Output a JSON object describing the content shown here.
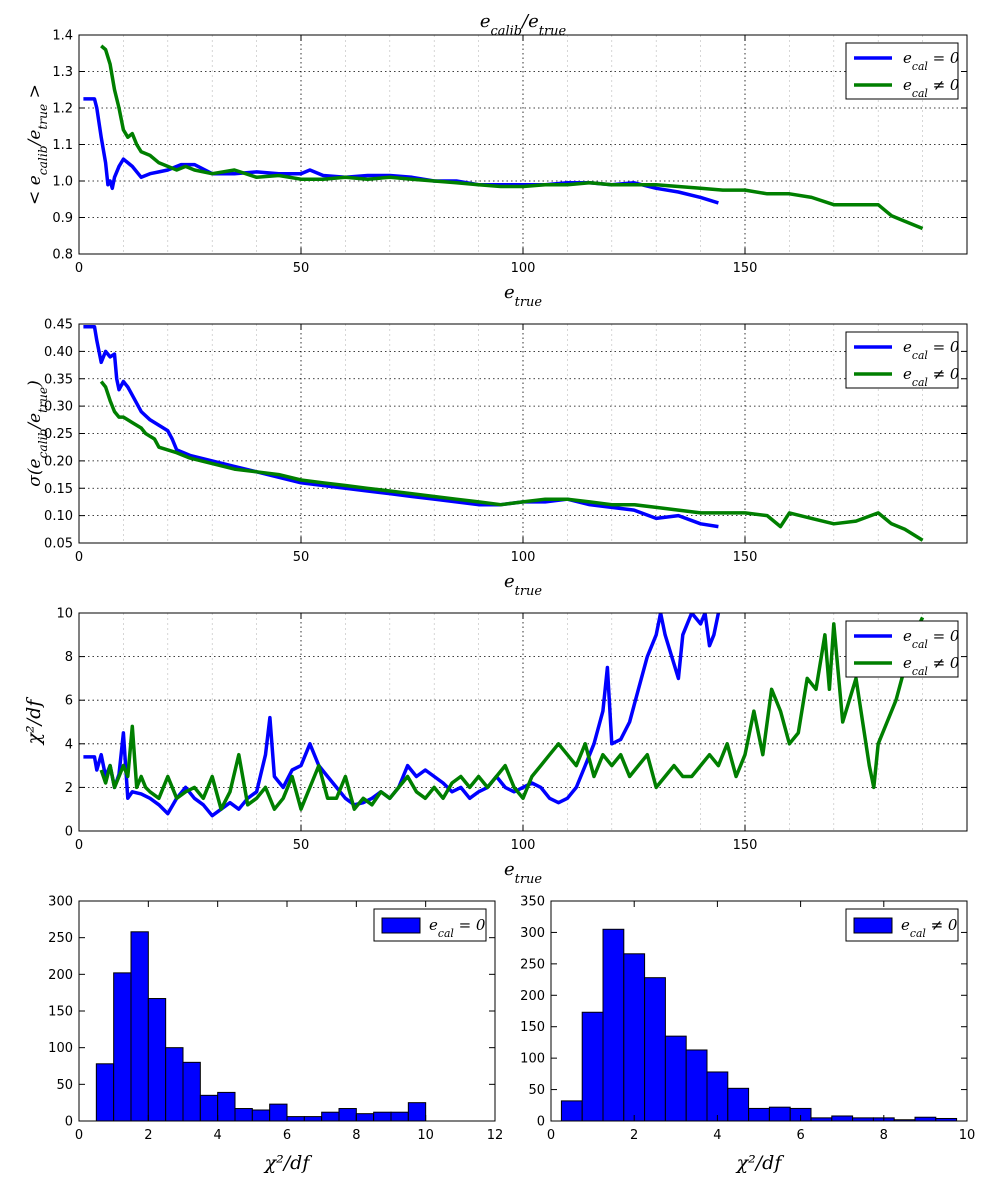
{
  "colors": {
    "blue": "#0000ff",
    "green": "#007f00",
    "grid": "#000000"
  },
  "legend": {
    "blue_label": "e_cal = 0",
    "green_label": "e_cal ≠ 0"
  },
  "chart_data": [
    {
      "type": "line",
      "title": "e_calib/e_true",
      "xlabel": "e_true",
      "ylabel": "< e_calib/e_true >",
      "xlim": [
        0,
        200
      ],
      "ylim": [
        0.8,
        1.4
      ],
      "xticks": [
        0,
        50,
        100,
        150
      ],
      "yticks": [
        0.8,
        0.9,
        1.0,
        1.1,
        1.2,
        1.3,
        1.4
      ],
      "grid": true,
      "legend_position": "top-right",
      "series": [
        {
          "name": "e_cal = 0",
          "color": "blue",
          "x": [
            1,
            3.5,
            4,
            5,
            6,
            6.5,
            7,
            7.5,
            8,
            9,
            10,
            12,
            14,
            16,
            18,
            20,
            23,
            26,
            30,
            35,
            40,
            45,
            50,
            52,
            55,
            60,
            65,
            70,
            75,
            80,
            85,
            90,
            95,
            100,
            105,
            110,
            115,
            120,
            125,
            130,
            135,
            140,
            144
          ],
          "y": [
            1.225,
            1.225,
            1.2,
            1.12,
            1.05,
            0.99,
            1.0,
            0.98,
            1.01,
            1.04,
            1.06,
            1.04,
            1.01,
            1.02,
            1.025,
            1.03,
            1.045,
            1.045,
            1.02,
            1.02,
            1.025,
            1.02,
            1.02,
            1.03,
            1.015,
            1.01,
            1.015,
            1.015,
            1.01,
            1.0,
            1.0,
            0.99,
            0.99,
            0.99,
            0.99,
            0.995,
            0.995,
            0.99,
            0.995,
            0.98,
            0.97,
            0.955,
            0.94
          ]
        },
        {
          "name": "e_cal ≠ 0",
          "color": "green",
          "x": [
            5,
            6,
            7,
            8,
            9,
            10,
            11,
            12,
            13,
            14,
            16,
            18,
            20,
            22,
            24,
            26,
            30,
            35,
            40,
            45,
            50,
            55,
            60,
            65,
            70,
            75,
            80,
            85,
            90,
            95,
            100,
            105,
            110,
            115,
            120,
            125,
            130,
            135,
            140,
            145,
            150,
            155,
            160,
            165,
            170,
            175,
            180,
            183,
            186,
            190
          ],
          "y": [
            1.37,
            1.36,
            1.32,
            1.25,
            1.2,
            1.14,
            1.12,
            1.13,
            1.1,
            1.08,
            1.07,
            1.05,
            1.04,
            1.03,
            1.04,
            1.03,
            1.02,
            1.03,
            1.01,
            1.015,
            1.005,
            1.005,
            1.01,
            1.005,
            1.01,
            1.005,
            1.0,
            0.995,
            0.99,
            0.985,
            0.985,
            0.99,
            0.99,
            0.995,
            0.99,
            0.99,
            0.99,
            0.985,
            0.98,
            0.975,
            0.975,
            0.965,
            0.965,
            0.955,
            0.935,
            0.935,
            0.935,
            0.905,
            0.89,
            0.87
          ]
        }
      ]
    },
    {
      "type": "line",
      "title": "",
      "xlabel": "e_true",
      "ylabel": "σ(e_calib/e_true)",
      "xlim": [
        0,
        200
      ],
      "ylim": [
        0.05,
        0.45
      ],
      "xticks": [
        0,
        50,
        100,
        150
      ],
      "yticks": [
        0.05,
        0.1,
        0.15,
        0.2,
        0.25,
        0.3,
        0.35,
        0.4,
        0.45
      ],
      "grid": true,
      "legend_position": "top-right",
      "series": [
        {
          "name": "e_cal = 0",
          "color": "blue",
          "x": [
            1,
            3.5,
            4,
            5,
            6,
            7,
            8,
            8.5,
            9,
            10,
            11,
            12,
            14,
            16,
            18,
            20,
            21,
            22,
            25,
            30,
            35,
            40,
            45,
            50,
            55,
            60,
            65,
            70,
            75,
            80,
            85,
            90,
            95,
            100,
            105,
            110,
            115,
            120,
            125,
            130,
            135,
            140,
            144
          ],
          "y": [
            0.445,
            0.445,
            0.42,
            0.38,
            0.4,
            0.39,
            0.395,
            0.35,
            0.33,
            0.345,
            0.335,
            0.32,
            0.29,
            0.275,
            0.265,
            0.255,
            0.24,
            0.22,
            0.21,
            0.2,
            0.19,
            0.18,
            0.17,
            0.16,
            0.155,
            0.15,
            0.145,
            0.14,
            0.135,
            0.13,
            0.125,
            0.12,
            0.12,
            0.125,
            0.125,
            0.13,
            0.12,
            0.115,
            0.11,
            0.095,
            0.1,
            0.085,
            0.08
          ]
        },
        {
          "name": "e_cal ≠ 0",
          "color": "green",
          "x": [
            5,
            6,
            7,
            8,
            9,
            10,
            12,
            14,
            15,
            16,
            17,
            18,
            20,
            22,
            25,
            30,
            35,
            40,
            45,
            50,
            55,
            60,
            65,
            70,
            75,
            80,
            85,
            90,
            95,
            100,
            105,
            110,
            115,
            120,
            125,
            130,
            135,
            140,
            145,
            150,
            155,
            158,
            160,
            165,
            170,
            175,
            180,
            183,
            186,
            190
          ],
          "y": [
            0.345,
            0.335,
            0.31,
            0.29,
            0.28,
            0.28,
            0.27,
            0.26,
            0.25,
            0.245,
            0.24,
            0.225,
            0.22,
            0.215,
            0.205,
            0.195,
            0.185,
            0.18,
            0.175,
            0.165,
            0.16,
            0.155,
            0.15,
            0.145,
            0.14,
            0.135,
            0.13,
            0.125,
            0.12,
            0.125,
            0.13,
            0.13,
            0.125,
            0.12,
            0.12,
            0.115,
            0.11,
            0.105,
            0.105,
            0.105,
            0.1,
            0.08,
            0.105,
            0.095,
            0.085,
            0.09,
            0.105,
            0.085,
            0.075,
            0.055
          ]
        }
      ]
    },
    {
      "type": "line",
      "title": "",
      "xlabel": "e_true",
      "ylabel": "χ²/df",
      "xlim": [
        0,
        200
      ],
      "ylim": [
        0,
        10
      ],
      "xticks": [
        0,
        50,
        100,
        150
      ],
      "yticks": [
        0,
        2,
        4,
        6,
        8,
        10
      ],
      "grid": true,
      "legend_position": "top-right",
      "series": [
        {
          "name": "e_cal = 0",
          "color": "blue",
          "x": [
            1,
            3.5,
            4,
            5,
            6,
            7,
            8,
            9,
            10,
            11,
            12,
            14,
            16,
            18,
            20,
            22,
            24,
            26,
            28,
            30,
            32,
            34,
            36,
            38,
            40,
            42,
            43,
            44,
            46,
            48,
            50,
            52,
            54,
            56,
            58,
            60,
            62,
            64,
            66,
            68,
            70,
            72,
            74,
            76,
            78,
            80,
            82,
            84,
            86,
            88,
            90,
            92,
            94,
            96,
            98,
            100,
            102,
            104,
            106,
            108,
            110,
            112,
            114,
            116,
            118,
            119,
            120,
            122,
            124,
            126,
            128,
            130,
            131,
            132,
            135,
            136,
            138,
            140,
            141,
            142,
            143,
            144
          ],
          "y": [
            3.4,
            3.4,
            2.8,
            3.5,
            2.5,
            3.0,
            2.0,
            2.6,
            4.5,
            1.5,
            1.8,
            1.7,
            1.5,
            1.2,
            0.8,
            1.5,
            2.0,
            1.5,
            1.2,
            0.7,
            1.0,
            1.3,
            1.0,
            1.5,
            1.8,
            3.5,
            5.2,
            2.5,
            2.0,
            2.8,
            3.0,
            4.0,
            3.0,
            2.5,
            2.0,
            1.5,
            1.2,
            1.3,
            1.5,
            1.8,
            1.5,
            2.0,
            3.0,
            2.5,
            2.8,
            2.5,
            2.2,
            1.8,
            2.0,
            1.5,
            1.8,
            2.0,
            2.5,
            2.0,
            1.8,
            2.0,
            2.2,
            2.0,
            1.5,
            1.3,
            1.5,
            2.0,
            3.0,
            4.0,
            5.5,
            7.5,
            4.0,
            4.2,
            5.0,
            6.5,
            8.0,
            9.0,
            10.0,
            9.0,
            7.0,
            9.0,
            10.0,
            9.5,
            10.0,
            8.5,
            9.0,
            10.0
          ]
        },
        {
          "name": "e_cal ≠ 0",
          "color": "green",
          "x": [
            5,
            6,
            7,
            8,
            9,
            10,
            11,
            12,
            13,
            14,
            15,
            16,
            18,
            20,
            22,
            24,
            26,
            28,
            30,
            32,
            34,
            36,
            38,
            40,
            42,
            44,
            46,
            48,
            50,
            52,
            54,
            56,
            58,
            60,
            62,
            64,
            66,
            68,
            70,
            72,
            74,
            76,
            78,
            80,
            82,
            84,
            86,
            88,
            90,
            92,
            94,
            96,
            98,
            100,
            102,
            104,
            106,
            108,
            110,
            112,
            114,
            116,
            118,
            120,
            122,
            124,
            126,
            128,
            130,
            132,
            134,
            136,
            138,
            140,
            142,
            144,
            146,
            148,
            150,
            152,
            154,
            156,
            158,
            160,
            162,
            164,
            166,
            168,
            169,
            170,
            172,
            175,
            178,
            179,
            180,
            182,
            184,
            186,
            188,
            190
          ],
          "y": [
            2.8,
            2.2,
            3.0,
            2.0,
            2.5,
            3.0,
            2.5,
            4.8,
            2.0,
            2.5,
            2.0,
            1.8,
            1.5,
            2.5,
            1.5,
            1.8,
            2.0,
            1.5,
            2.5,
            1.0,
            1.8,
            3.5,
            1.2,
            1.5,
            2.0,
            1.0,
            1.5,
            2.5,
            1.0,
            2.0,
            3.0,
            1.5,
            1.5,
            2.5,
            1.0,
            1.5,
            1.2,
            1.8,
            1.5,
            2.0,
            2.5,
            1.8,
            1.5,
            2.0,
            1.5,
            2.2,
            2.5,
            2.0,
            2.5,
            2.0,
            2.5,
            3.0,
            2.0,
            1.5,
            2.5,
            3.0,
            3.5,
            4.0,
            3.5,
            3.0,
            4.0,
            2.5,
            3.5,
            3.0,
            3.5,
            2.5,
            3.0,
            3.5,
            2.0,
            2.5,
            3.0,
            2.5,
            2.5,
            3.0,
            3.5,
            3.0,
            4.0,
            2.5,
            3.5,
            5.5,
            3.5,
            6.5,
            5.5,
            4.0,
            4.5,
            7.0,
            6.5,
            9.0,
            6.5,
            9.5,
            5.0,
            7.0,
            3.0,
            2.0,
            4.0,
            5.0,
            6.0,
            7.5,
            9.0,
            9.8
          ]
        }
      ]
    },
    {
      "type": "bar",
      "title": "",
      "xlabel": "χ²/df",
      "ylabel": "",
      "xlim": [
        0,
        12
      ],
      "ylim": [
        0,
        300
      ],
      "xticks": [
        0,
        2,
        4,
        6,
        8,
        10,
        12
      ],
      "yticks": [
        0,
        50,
        100,
        150,
        200,
        250,
        300
      ],
      "grid": false,
      "legend_position": "top-right",
      "bin_edges": [
        0.5,
        1.0,
        1.5,
        2.0,
        2.5,
        3.0,
        3.5,
        4.0,
        4.5,
        5.0,
        5.5,
        6.0,
        6.5,
        7.0,
        7.5,
        8.0,
        8.5,
        9.0,
        9.5,
        10.0
      ],
      "series": [
        {
          "name": "e_cal = 0",
          "color": "blue",
          "values": [
            78,
            202,
            258,
            167,
            100,
            80,
            35,
            39,
            17,
            15,
            23,
            6,
            6,
            12,
            17,
            10,
            12,
            12,
            25
          ]
        }
      ]
    },
    {
      "type": "bar",
      "title": "",
      "xlabel": "χ²/df",
      "ylabel": "",
      "xlim": [
        0,
        10
      ],
      "ylim": [
        0,
        350
      ],
      "xticks": [
        0,
        2,
        4,
        6,
        8,
        10
      ],
      "yticks": [
        0,
        50,
        100,
        150,
        200,
        250,
        300,
        350
      ],
      "grid": false,
      "legend_position": "top-right",
      "bin_edges": [
        0.25,
        0.75,
        1.25,
        1.75,
        2.25,
        2.75,
        3.25,
        3.75,
        4.25,
        4.75,
        5.25,
        5.75,
        6.25,
        6.75,
        7.25,
        7.75,
        8.25,
        8.75,
        9.25,
        9.75
      ],
      "series": [
        {
          "name": "e_cal ≠ 0",
          "color": "blue",
          "values": [
            32,
            173,
            305,
            266,
            228,
            135,
            113,
            78,
            52,
            20,
            22,
            20,
            5,
            8,
            5,
            5,
            2,
            6,
            4
          ]
        }
      ]
    }
  ]
}
